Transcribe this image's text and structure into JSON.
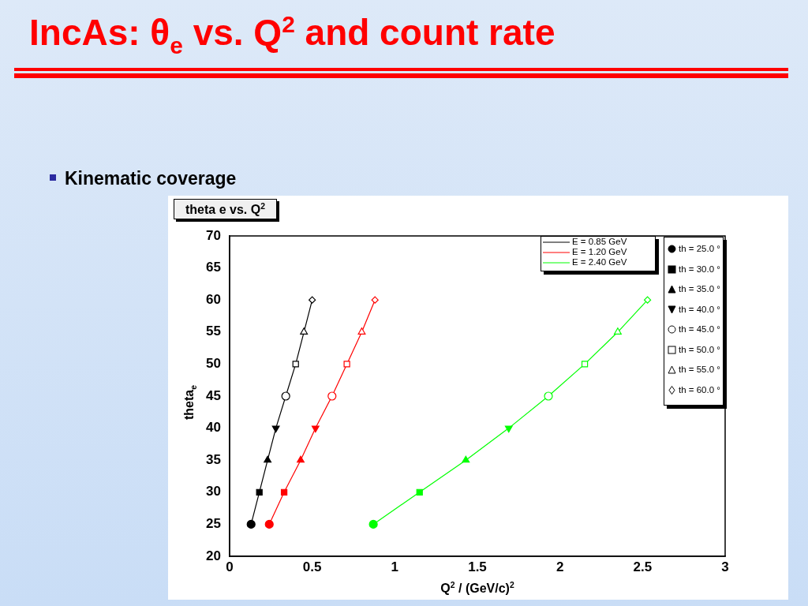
{
  "chart_data": {
    "type": "line",
    "title": "IncAs:  θ$_{e}$ vs. Q$^{2}$ and count rate",
    "subtitle": "Kinematic coverage",
    "annotations": [
      "theta e vs. Q$^{2}$"
    ],
    "xlabel": "Q$^{2}$ / (GeV/c)$^{2}$",
    "ylabel": "theta$_{e}$",
    "xlim": [
      0,
      3
    ],
    "xticks": [
      0,
      0.5,
      1,
      1.5,
      2,
      2.5,
      3
    ],
    "ylim": [
      20,
      70
    ],
    "yticks": [
      20,
      25,
      30,
      35,
      40,
      45,
      50,
      55,
      60,
      65,
      70
    ],
    "legend": "top right",
    "series": [
      {
        "name": "E = 0.85 GeV",
        "type": "line",
        "marker": "none",
        "color": "#000000",
        "x": [
          0.13,
          0.18,
          0.23,
          0.28,
          0.34,
          0.4,
          0.45,
          0.5
        ],
        "values": [
          25,
          30,
          35,
          40,
          45,
          50,
          55,
          60
        ]
      },
      {
        "name": "E = 1.20 GeV",
        "type": "line",
        "marker": "none",
        "color": "#ff0000",
        "x": [
          0.24,
          0.33,
          0.43,
          0.52,
          0.62,
          0.71,
          0.8,
          0.88
        ],
        "values": [
          25,
          30,
          35,
          40,
          45,
          50,
          55,
          60
        ]
      },
      {
        "name": "E = 2.40 GeV",
        "type": "line",
        "marker": "none",
        "color": "#00ff00",
        "x": [
          0.87,
          1.15,
          1.43,
          1.69,
          1.93,
          2.15,
          2.35,
          2.53
        ],
        "values": [
          25,
          30,
          35,
          40,
          45,
          50,
          55,
          60
        ]
      },
      {
        "name": "th = 25.0 °",
        "type": "scatter",
        "marker": "circle",
        "colors": [
          "#000000",
          "#ff0000",
          "#00ff00"
        ],
        "x": [
          0.13,
          0.24,
          0.87
        ],
        "values": [
          25,
          25,
          25
        ]
      },
      {
        "name": "th = 30.0 °",
        "type": "scatter",
        "marker": "square",
        "colors": [
          "#000000",
          "#ff0000",
          "#00ff00"
        ],
        "x": [
          0.18,
          0.33,
          1.15
        ],
        "values": [
          30,
          30,
          30
        ]
      },
      {
        "name": "th = 35.0 °",
        "type": "scatter",
        "marker": "triangle",
        "colors": [
          "#000000",
          "#ff0000",
          "#00ff00"
        ],
        "x": [
          0.23,
          0.43,
          1.43
        ],
        "values": [
          35,
          35,
          35
        ]
      },
      {
        "name": "th = 40.0 °",
        "type": "scatter",
        "marker": "triangle-down",
        "colors": [
          "#000000",
          "#ff0000",
          "#00ff00"
        ],
        "x": [
          0.28,
          0.52,
          1.69
        ],
        "values": [
          40,
          40,
          40
        ]
      },
      {
        "name": "th = 45.0 °",
        "type": "scatter",
        "marker": "circle-open",
        "colors": [
          "#000000",
          "#ff0000",
          "#00ff00"
        ],
        "x": [
          0.34,
          0.62,
          1.93
        ],
        "values": [
          45,
          45,
          45
        ]
      },
      {
        "name": "th = 50.0 °",
        "type": "scatter",
        "marker": "square-open",
        "colors": [
          "#000000",
          "#ff0000",
          "#00ff00"
        ],
        "x": [
          0.4,
          0.71,
          2.15
        ],
        "values": [
          50,
          50,
          50
        ]
      },
      {
        "name": "th = 55.0 °",
        "type": "scatter",
        "marker": "triangle-open",
        "colors": [
          "#000000",
          "#ff0000",
          "#00ff00"
        ],
        "x": [
          0.45,
          0.8,
          2.35
        ],
        "values": [
          55,
          55,
          55
        ]
      },
      {
        "name": "th = 60.0 °",
        "type": "scatter",
        "marker": "diamond-open",
        "colors": [
          "#000000",
          "#ff0000",
          "#00ff00"
        ],
        "x": [
          0.5,
          0.88,
          2.53
        ],
        "values": [
          60,
          60,
          60
        ]
      }
    ]
  }
}
